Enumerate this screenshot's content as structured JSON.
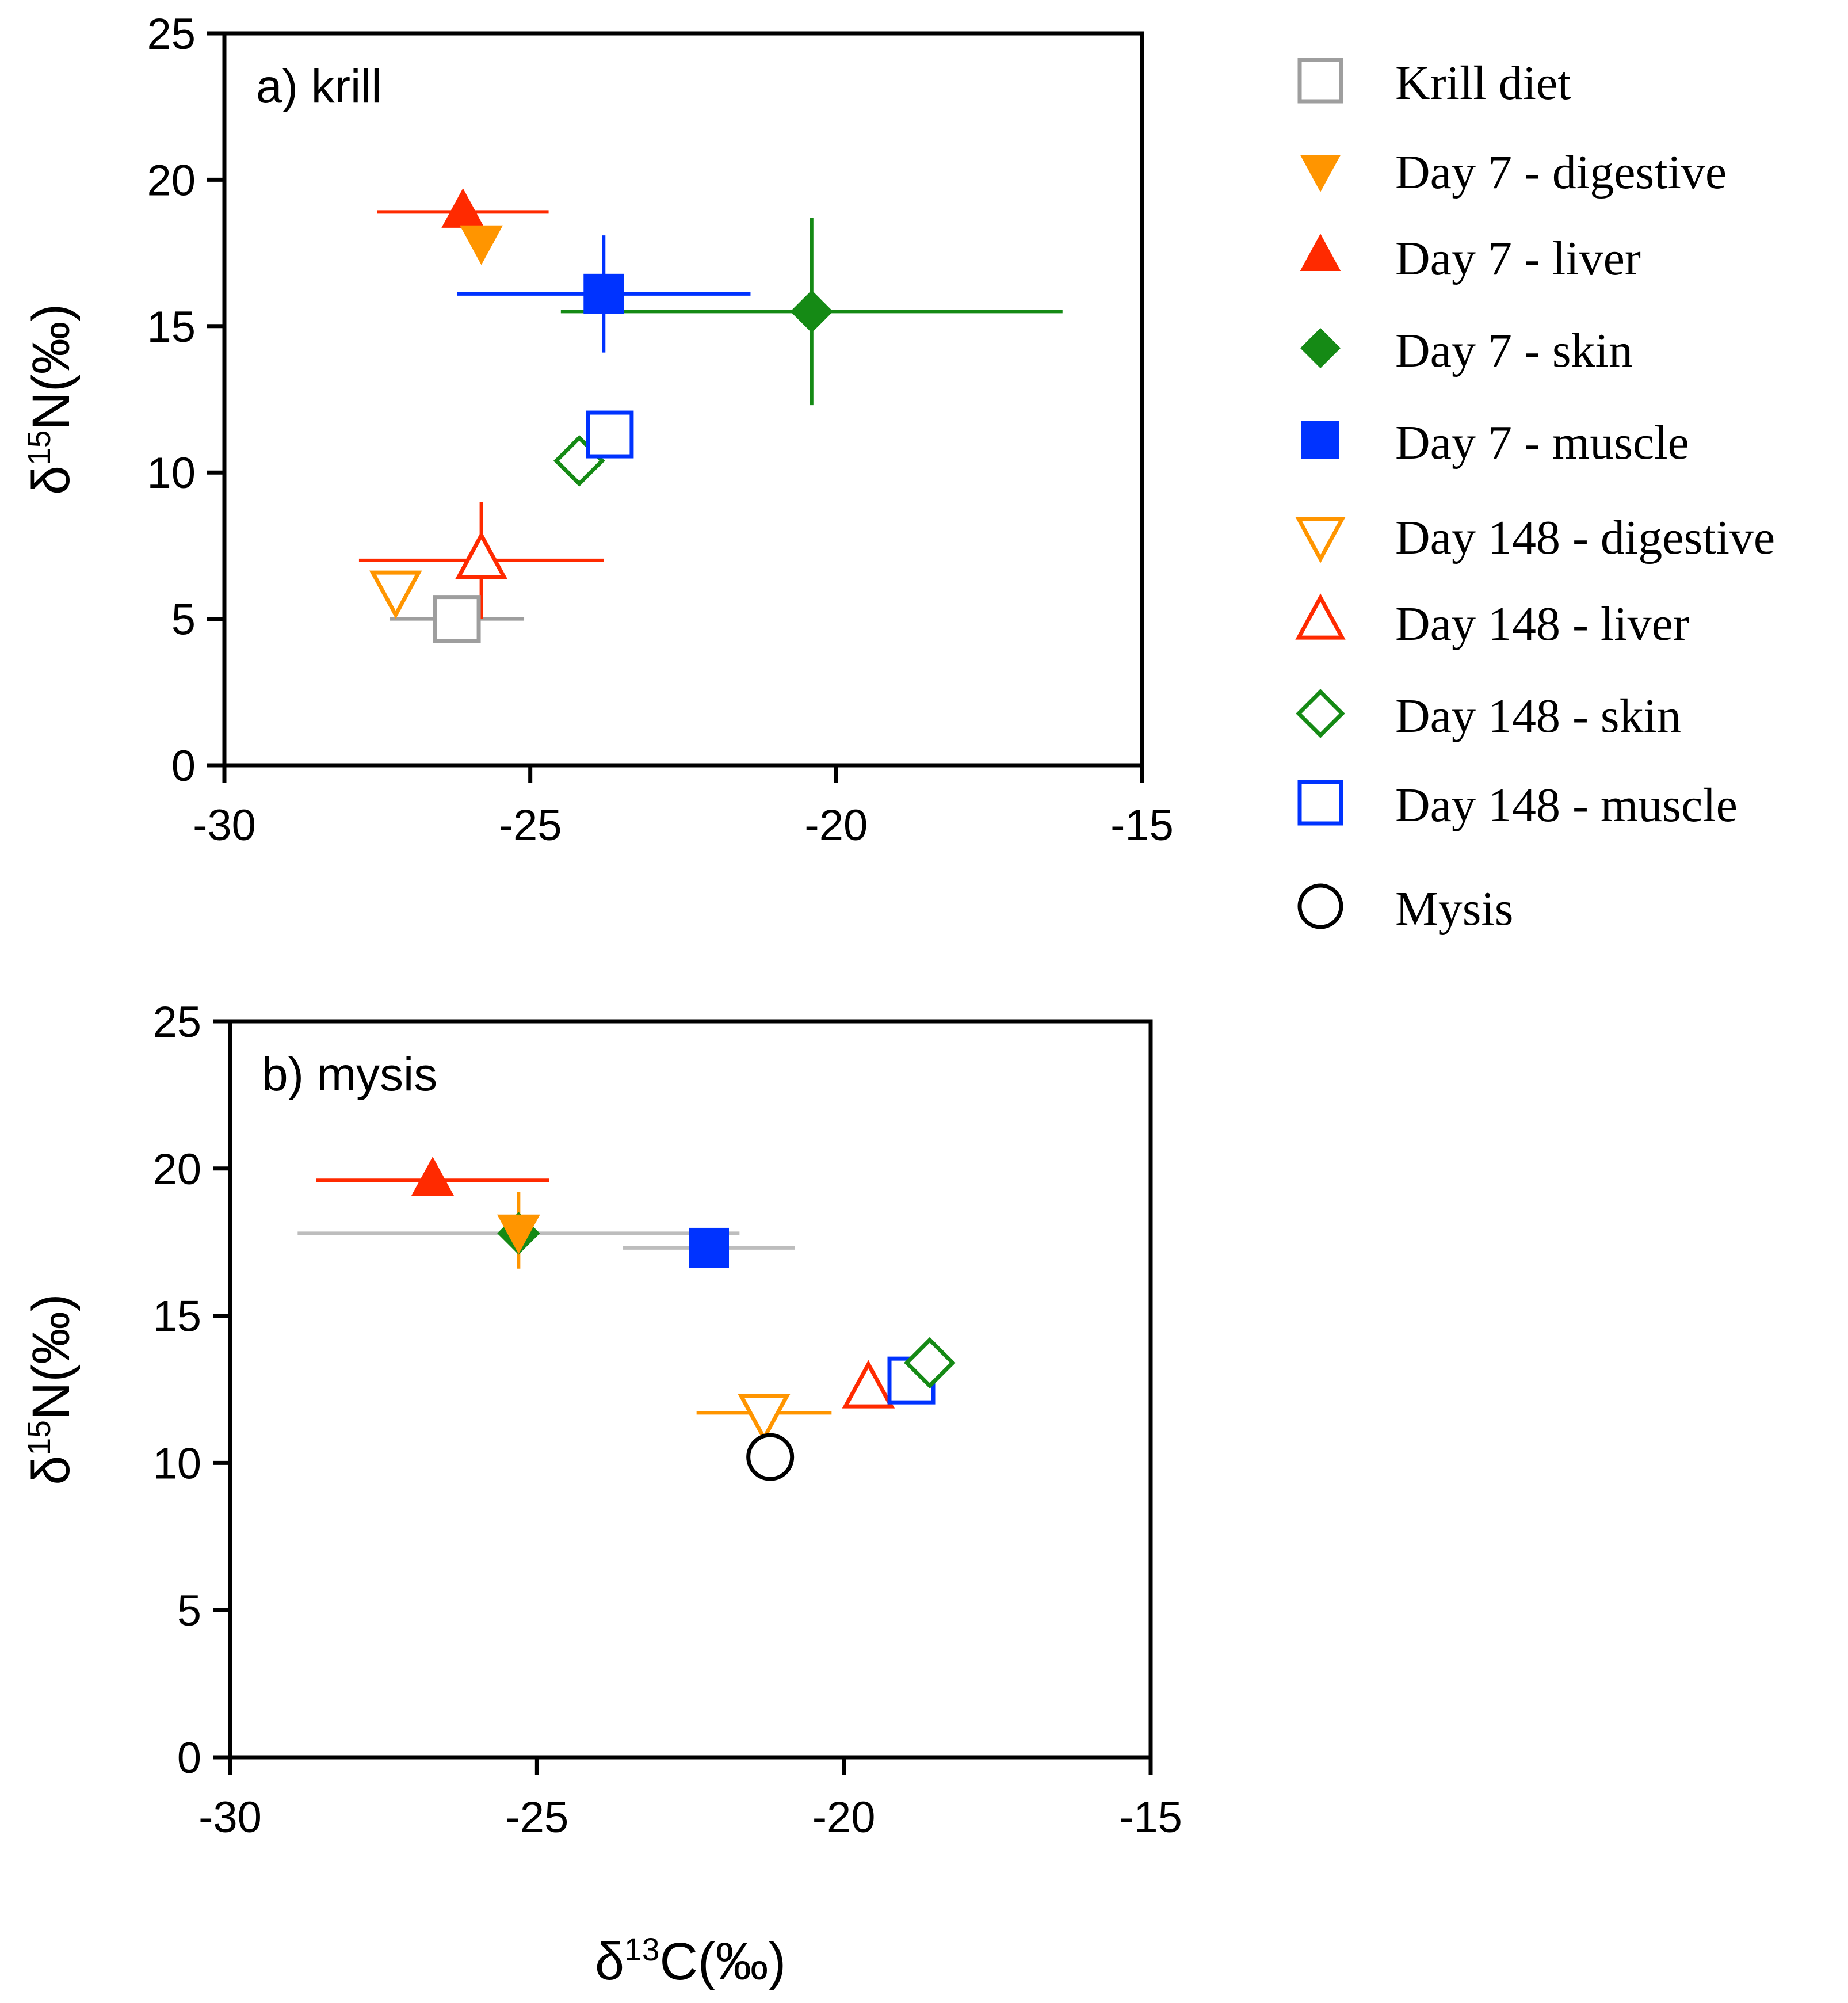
{
  "chart_data": [
    {
      "type": "scatter",
      "title": "a) krill",
      "xlabel": "",
      "ylabel_main": "δ",
      "ylabel_sup": "15",
      "ylabel_rest": "N(‰)",
      "xlim": [
        -30,
        -15
      ],
      "ylim": [
        0,
        25
      ],
      "xticks": [
        -30,
        -25,
        -20,
        -15
      ],
      "yticks": [
        0,
        5,
        10,
        15,
        20,
        25
      ],
      "points": [
        {
          "series": "Krill diet",
          "x": -26.2,
          "y": 5.0,
          "xerr": 1.1,
          "yerr": 0.3
        },
        {
          "series": "Day 148 - digestive",
          "x": -27.2,
          "y": 6.0,
          "xerr": 0.2,
          "yerr": 0.3
        },
        {
          "series": "Day 148 - liver",
          "x": -25.8,
          "y": 7.0,
          "xerr": 2.0,
          "yerr": 2.0
        },
        {
          "series": "Day 148 - skin",
          "x": -24.2,
          "y": 10.4,
          "xerr": 0.2,
          "yerr": 0.2
        },
        {
          "series": "Day 148 - muscle",
          "x": -23.7,
          "y": 11.3,
          "xerr": 0.2,
          "yerr": 0.2
        },
        {
          "series": "Day 7 - liver",
          "x": -26.1,
          "y": 18.9,
          "xerr": 1.4,
          "yerr": 0.2
        },
        {
          "series": "Day 7 - digestive",
          "x": -25.8,
          "y": 17.9,
          "xerr": 0.2,
          "yerr": 0.3
        },
        {
          "series": "Day 7 - muscle",
          "x": -23.8,
          "y": 16.1,
          "xerr": 2.4,
          "yerr": 2.0
        },
        {
          "series": "Day 7 - skin",
          "x": -20.4,
          "y": 15.5,
          "xerr": 4.1,
          "yerr": 3.2
        }
      ]
    },
    {
      "type": "scatter",
      "title": "b) mysis",
      "xlabel_main": "δ",
      "xlabel_sup": "13",
      "xlabel_rest": "C(‰)",
      "ylabel_main": "δ",
      "ylabel_sup": "15",
      "ylabel_rest": "N(‰)",
      "xlim": [
        -30,
        -15
      ],
      "ylim": [
        0,
        25
      ],
      "xticks": [
        -30,
        -25,
        -20,
        -15
      ],
      "yticks": [
        0,
        5,
        10,
        15,
        20,
        25
      ],
      "points": [
        {
          "series": "Day 7 - liver",
          "x": -26.7,
          "y": 19.6,
          "xerr": 1.9,
          "yerr": 0.2
        },
        {
          "series": "Day 7 - skin",
          "x": -25.3,
          "y": 17.8,
          "xerr": 3.6,
          "yerr": 0.3,
          "errcolor": "#bdbdbd"
        },
        {
          "series": "Day 7 - digestive",
          "x": -25.3,
          "y": 17.9,
          "xerr": 0.2,
          "yerr": 1.3
        },
        {
          "series": "Day 7 - muscle",
          "x": -22.2,
          "y": 17.3,
          "xerr": 1.4,
          "yerr": 0.6,
          "errcolor": "#bdbdbd"
        },
        {
          "series": "Day 148 - digestive",
          "x": -21.3,
          "y": 11.7,
          "xerr": 1.1,
          "yerr": 0.3
        },
        {
          "series": "Mysis",
          "x": -21.2,
          "y": 10.2,
          "xerr": 0.1,
          "yerr": 0.2
        },
        {
          "series": "Day 148 - liver",
          "x": -19.6,
          "y": 12.5,
          "xerr": 0.2,
          "yerr": 0.2
        },
        {
          "series": "Day 148 - muscle",
          "x": -18.9,
          "y": 12.8,
          "xerr": 0.2,
          "yerr": 0.2
        },
        {
          "series": "Day 148 - skin",
          "x": -18.6,
          "y": 13.4,
          "xerr": 0.2,
          "yerr": 0.2
        }
      ]
    }
  ],
  "legend": [
    {
      "label": "Krill diet",
      "marker": "square",
      "filled": false,
      "color": "#9e9e9e"
    },
    {
      "label": "Day 7 - digestive",
      "marker": "triangle-down",
      "filled": true,
      "color": "#ff9500"
    },
    {
      "label": "Day 7 - liver",
      "marker": "triangle-up",
      "filled": true,
      "color": "#ff2a00"
    },
    {
      "label": "Day 7 - skin",
      "marker": "diamond",
      "filled": true,
      "color": "#158a15"
    },
    {
      "label": "Day 7 - muscle",
      "marker": "square",
      "filled": true,
      "color": "#0033ff"
    },
    {
      "label": "Day 148 - digestive",
      "marker": "triangle-down",
      "filled": false,
      "color": "#ff9500"
    },
    {
      "label": "Day 148 - liver",
      "marker": "triangle-up",
      "filled": false,
      "color": "#ff2a00"
    },
    {
      "label": "Day 148 - skin",
      "marker": "diamond",
      "filled": false,
      "color": "#158a15"
    },
    {
      "label": "Day 148 - muscle",
      "marker": "square",
      "filled": false,
      "color": "#0033ff"
    },
    {
      "label": "Mysis",
      "marker": "circle",
      "filled": false,
      "color": "#000000"
    }
  ]
}
